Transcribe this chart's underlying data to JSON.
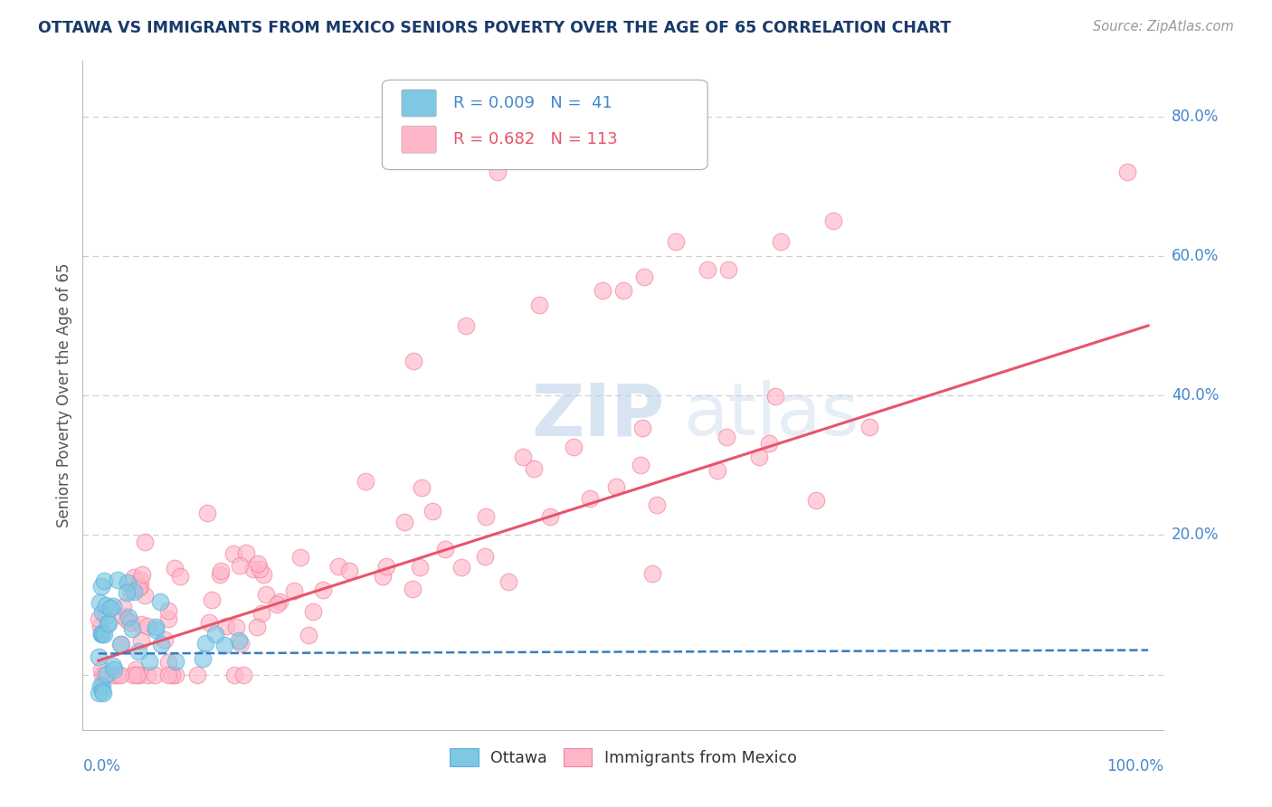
{
  "title": "OTTAWA VS IMMIGRANTS FROM MEXICO SENIORS POVERTY OVER THE AGE OF 65 CORRELATION CHART",
  "source": "Source: ZipAtlas.com",
  "ylabel": "Seniors Poverty Over the Age of 65",
  "ottawa_color": "#7ec8e3",
  "ottawa_edge_color": "#5aafe0",
  "mexico_color": "#ffb6c8",
  "mexico_edge_color": "#f08098",
  "ottawa_line_color": "#3a7abf",
  "mexico_line_color": "#e8546a",
  "title_color": "#1a3a6b",
  "source_color": "#999999",
  "background_color": "#ffffff",
  "grid_color": "#cccccc",
  "axis_label_color": "#4488cc",
  "watermark_color": "#dce8f5",
  "ylabel_color": "#555555",
  "legend_text_color_1": "#4488cc",
  "legend_text_color_2": "#e8546a"
}
